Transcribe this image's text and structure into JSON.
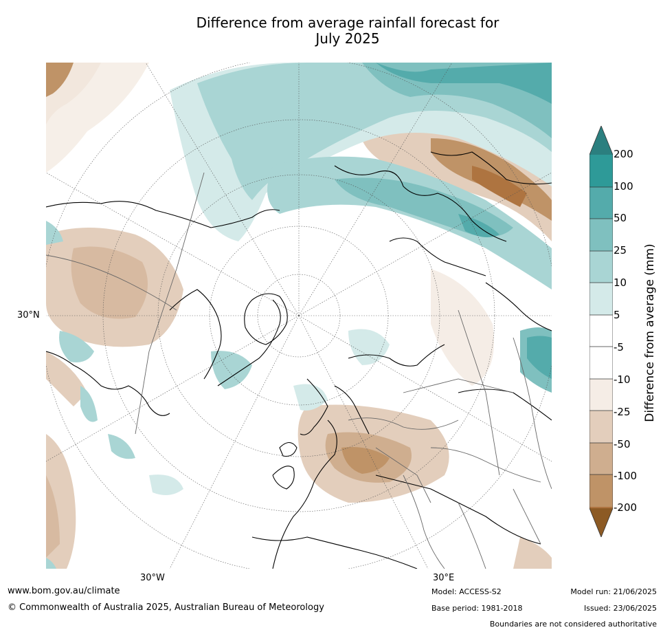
{
  "title": {
    "line1": "Difference from average rainfall forecast for",
    "line2": "July 2025"
  },
  "map": {
    "projection": "north-polar-stereographic",
    "lat_labels": [
      "30°N"
    ],
    "lon_labels": [
      "30°W",
      "30°E"
    ]
  },
  "colorbar": {
    "title": "Difference from average (mm)",
    "ticks": [
      "200",
      "100",
      "50",
      "25",
      "10",
      "5",
      "-5",
      "-10",
      "-25",
      "-50",
      "-100",
      "-200"
    ],
    "colors": {
      "over": "#2b7f7f",
      "gt200": "#2e9a98",
      "100_200": "#54abab",
      "50_100": "#7fc0bf",
      "25_50": "#a9d5d4",
      "10_25": "#d4eae9",
      "5_10": "#ffffff",
      "neg5_5": "#ffffff",
      "neg10_neg5": "#f5ede6",
      "neg25_neg10": "#e3cebc",
      "neg50_neg25": "#cfae8f",
      "neg100_neg50": "#bf9367",
      "neg200_neg100": "#ae7440",
      "under": "#8c5a24"
    }
  },
  "footer": {
    "url": "www.bom.gov.au/climate",
    "copyright": "© Commonwealth of Australia 2025, Australian Bureau of Meteorology",
    "model": "Model: ACCESS-S2",
    "base_period": "Base period: 1981-2018",
    "model_run": "Model run: 21/06/2025",
    "issued": "Issued: 23/06/2025",
    "disclaimer": "Boundaries are not considered authoritative"
  }
}
